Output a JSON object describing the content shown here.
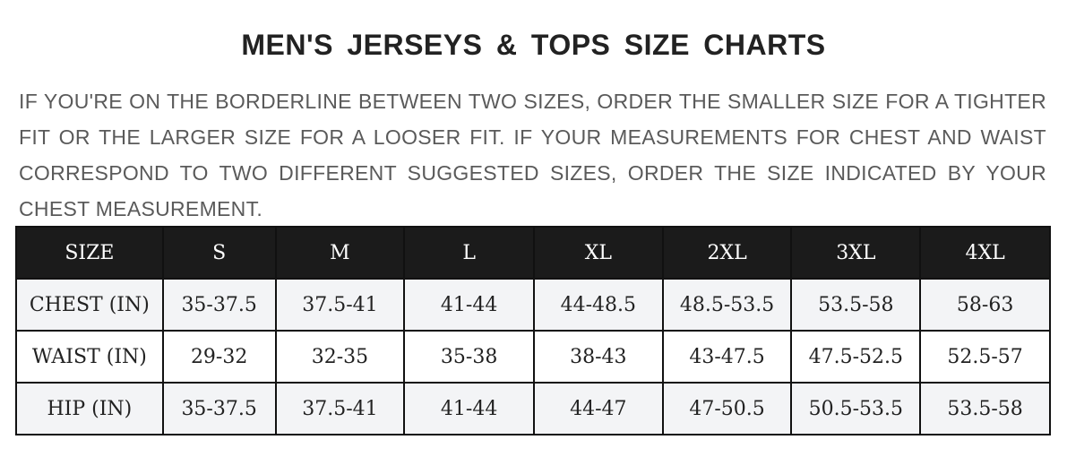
{
  "title": "MEN'S JERSEYS & TOPS SIZE CHARTS",
  "note": "IF YOU'RE ON THE BORDERLINE BETWEEN TWO SIZES, ORDER THE SMALLER SIZE FOR A TIGHTER FIT OR THE LARGER SIZE FOR A LOOSER FIT. IF YOUR MEASUREMENTS FOR CHEST AND WAIST CORRESPOND TO TWO DIFFERENT SUGGESTED SIZES, ORDER THE SIZE INDICATED BY YOUR CHEST MEASUREMENT.",
  "table": {
    "headers": [
      "SIZE",
      "S",
      "M",
      "L",
      "XL",
      "2XL",
      "3XL",
      "4XL"
    ],
    "rows": [
      [
        "CHEST (IN)",
        "35-37.5",
        "37.5-41",
        "41-44",
        "44-48.5",
        "48.5-53.5",
        "53.5-58",
        "58-63"
      ],
      [
        "WAIST (IN)",
        "29-32",
        "32-35",
        "35-38",
        "38-43",
        "43-47.5",
        "47.5-52.5",
        "52.5-57"
      ],
      [
        "HIP (IN)",
        "35-37.5",
        "37.5-41",
        "41-44",
        "44-47",
        "47-50.5",
        "50.5-53.5",
        "53.5-58"
      ]
    ]
  }
}
